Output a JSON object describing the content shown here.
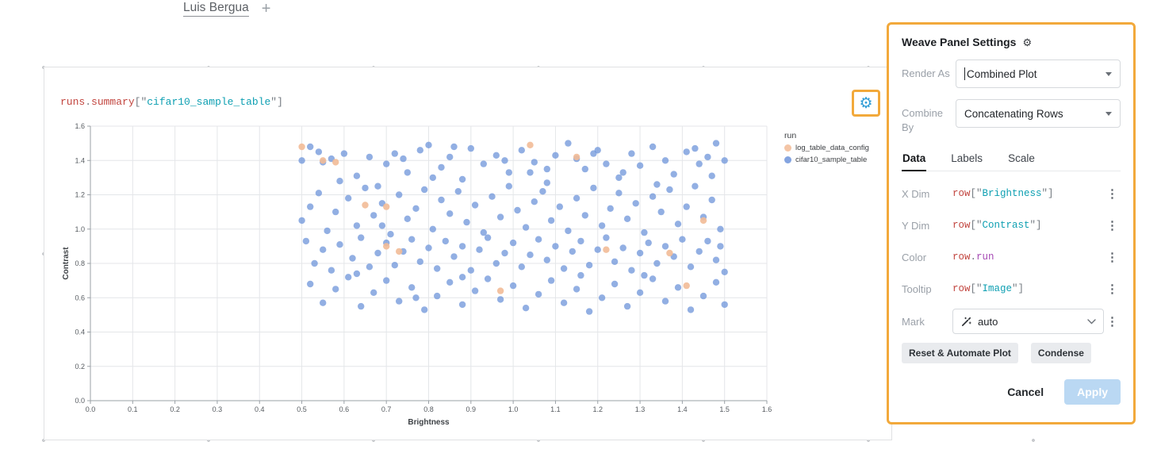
{
  "colors": {
    "highlight": "#f2a93b",
    "gear_blue": "#2f9cd6",
    "apply_bg": "#bad8f3",
    "apply_text": "#ffffff"
  },
  "code_colors": {
    "red": "#c2453f",
    "teal": "#0d9fb2",
    "purple": "#a74bb5",
    "gray": "#767c83"
  },
  "breadcrumb": {
    "name": "Luis Bergua",
    "add": "+"
  },
  "panel": {
    "expression": [
      {
        "t": "runs",
        "c": "red"
      },
      {
        "t": ".",
        "c": "gray"
      },
      {
        "t": "summary",
        "c": "red"
      },
      {
        "t": "[\"",
        "c": "gray"
      },
      {
        "t": "cifar10_sample_table",
        "c": "teal"
      },
      {
        "t": "\"]",
        "c": "gray"
      }
    ]
  },
  "settings": {
    "title": "Weave Panel Settings",
    "render_as_label": "Render As",
    "render_as_value": "Combined Plot",
    "combine_by_label": "Combine By",
    "combine_by_value": "Concatenating Rows",
    "tabs": [
      "Data",
      "Labels",
      "Scale"
    ],
    "active_tab": "Data",
    "rows": {
      "x_dim": {
        "label": "X Dim",
        "value": [
          {
            "t": "row",
            "c": "red"
          },
          {
            "t": "[\"",
            "c": "gray"
          },
          {
            "t": "Brightness",
            "c": "teal"
          },
          {
            "t": "\"]",
            "c": "gray"
          }
        ]
      },
      "y_dim": {
        "label": "Y Dim",
        "value": [
          {
            "t": "row",
            "c": "red"
          },
          {
            "t": "[\"",
            "c": "gray"
          },
          {
            "t": "Contrast",
            "c": "teal"
          },
          {
            "t": "\"]",
            "c": "gray"
          }
        ]
      },
      "color": {
        "label": "Color",
        "value": [
          {
            "t": "row",
            "c": "red"
          },
          {
            "t": ".",
            "c": "gray"
          },
          {
            "t": "run",
            "c": "purple"
          }
        ]
      },
      "tooltip": {
        "label": "Tooltip",
        "value": [
          {
            "t": "row",
            "c": "red"
          },
          {
            "t": "[\"",
            "c": "gray"
          },
          {
            "t": "Image",
            "c": "teal"
          },
          {
            "t": "\"]",
            "c": "gray"
          }
        ]
      }
    },
    "mark": {
      "label": "Mark",
      "value": "auto"
    },
    "reset_button": "Reset & Automate Plot",
    "condense_button": "Condense",
    "cancel_button": "Cancel",
    "apply_button": "Apply"
  },
  "chart_data": {
    "type": "scatter",
    "xlabel": "Brightness",
    "ylabel": "Contrast",
    "xlim": [
      0,
      1.6
    ],
    "ylim": [
      0,
      1.6
    ],
    "x_ticks": [
      0.0,
      0.1,
      0.2,
      0.3,
      0.4,
      0.5,
      0.6,
      0.7,
      0.8,
      0.9,
      1.0,
      1.1,
      1.2,
      1.3,
      1.4,
      1.5,
      1.6
    ],
    "y_ticks": [
      0.0,
      0.2,
      0.4,
      0.6,
      0.8,
      1.0,
      1.2,
      1.4,
      1.6
    ],
    "legend": {
      "title": "run",
      "entries": [
        {
          "label": "log_table_data_config",
          "color": "#f2bb97"
        },
        {
          "label": "cifar10_sample_table",
          "color": "#6e94da"
        }
      ]
    },
    "series": [
      {
        "name": "cifar10_sample_table",
        "color": "#6e94da",
        "opacity": 0.75,
        "points": [
          [
            0.5,
            1.4
          ],
          [
            0.52,
            1.48
          ],
          [
            0.55,
            1.39
          ],
          [
            0.57,
            1.41
          ],
          [
            0.6,
            1.44
          ],
          [
            0.63,
            1.31
          ],
          [
            0.66,
            1.42
          ],
          [
            0.68,
            1.25
          ],
          [
            0.7,
            1.38
          ],
          [
            0.72,
            1.44
          ],
          [
            0.75,
            1.33
          ],
          [
            0.78,
            1.46
          ],
          [
            0.8,
            1.49
          ],
          [
            0.83,
            1.36
          ],
          [
            0.85,
            1.42
          ],
          [
            0.88,
            1.29
          ],
          [
            0.9,
            1.47
          ],
          [
            0.93,
            1.38
          ],
          [
            0.96,
            1.43
          ],
          [
            0.99,
            1.33
          ],
          [
            1.02,
            1.46
          ],
          [
            1.05,
            1.39
          ],
          [
            1.08,
            1.27
          ],
          [
            1.1,
            1.43
          ],
          [
            1.13,
            1.5
          ],
          [
            1.15,
            1.41
          ],
          [
            1.17,
            1.35
          ],
          [
            1.2,
            1.46
          ],
          [
            1.22,
            1.38
          ],
          [
            1.25,
            1.3
          ],
          [
            1.28,
            1.44
          ],
          [
            1.3,
            1.37
          ],
          [
            1.33,
            1.48
          ],
          [
            1.36,
            1.4
          ],
          [
            1.38,
            1.32
          ],
          [
            1.41,
            1.45
          ],
          [
            1.44,
            1.38
          ],
          [
            1.46,
            1.42
          ],
          [
            1.48,
            1.5
          ],
          [
            1.5,
            1.4
          ],
          [
            0.5,
            1.05
          ],
          [
            0.52,
            1.13
          ],
          [
            0.54,
            1.21
          ],
          [
            0.56,
            0.99
          ],
          [
            0.58,
            1.1
          ],
          [
            0.61,
            1.18
          ],
          [
            0.63,
            1.02
          ],
          [
            0.65,
            1.24
          ],
          [
            0.67,
            1.08
          ],
          [
            0.69,
            1.15
          ],
          [
            0.71,
            0.97
          ],
          [
            0.73,
            1.2
          ],
          [
            0.75,
            1.06
          ],
          [
            0.77,
            1.12
          ],
          [
            0.79,
            1.23
          ],
          [
            0.81,
            1.0
          ],
          [
            0.83,
            1.17
          ],
          [
            0.85,
            1.09
          ],
          [
            0.87,
            1.22
          ],
          [
            0.89,
            1.04
          ],
          [
            0.91,
            1.14
          ],
          [
            0.93,
            0.98
          ],
          [
            0.95,
            1.19
          ],
          [
            0.97,
            1.07
          ],
          [
            0.99,
            1.25
          ],
          [
            1.01,
            1.11
          ],
          [
            1.03,
            1.01
          ],
          [
            1.05,
            1.16
          ],
          [
            1.07,
            1.22
          ],
          [
            1.09,
            1.05
          ],
          [
            1.11,
            1.13
          ],
          [
            1.13,
            0.99
          ],
          [
            1.15,
            1.18
          ],
          [
            1.17,
            1.08
          ],
          [
            1.19,
            1.24
          ],
          [
            1.21,
            1.02
          ],
          [
            1.23,
            1.12
          ],
          [
            1.25,
            1.21
          ],
          [
            1.27,
            1.06
          ],
          [
            1.29,
            1.15
          ],
          [
            1.31,
            0.98
          ],
          [
            1.33,
            1.19
          ],
          [
            1.35,
            1.1
          ],
          [
            1.37,
            1.23
          ],
          [
            1.39,
            1.03
          ],
          [
            1.41,
            1.13
          ],
          [
            1.43,
            1.25
          ],
          [
            1.45,
            1.07
          ],
          [
            1.47,
            1.17
          ],
          [
            1.49,
            1.0
          ],
          [
            0.51,
            0.93
          ],
          [
            0.53,
            0.8
          ],
          [
            0.55,
            0.88
          ],
          [
            0.57,
            0.76
          ],
          [
            0.59,
            0.91
          ],
          [
            0.62,
            0.83
          ],
          [
            0.64,
            0.95
          ],
          [
            0.66,
            0.78
          ],
          [
            0.68,
            0.86
          ],
          [
            0.7,
            0.92
          ],
          [
            0.72,
            0.79
          ],
          [
            0.74,
            0.87
          ],
          [
            0.76,
            0.94
          ],
          [
            0.78,
            0.81
          ],
          [
            0.8,
            0.89
          ],
          [
            0.82,
            0.77
          ],
          [
            0.84,
            0.93
          ],
          [
            0.86,
            0.84
          ],
          [
            0.88,
            0.9
          ],
          [
            0.9,
            0.76
          ],
          [
            0.92,
            0.88
          ],
          [
            0.94,
            0.95
          ],
          [
            0.96,
            0.8
          ],
          [
            0.98,
            0.86
          ],
          [
            1.0,
            0.92
          ],
          [
            1.02,
            0.78
          ],
          [
            1.04,
            0.85
          ],
          [
            1.06,
            0.94
          ],
          [
            1.08,
            0.82
          ],
          [
            1.1,
            0.9
          ],
          [
            1.12,
            0.77
          ],
          [
            1.14,
            0.87
          ],
          [
            1.16,
            0.93
          ],
          [
            1.18,
            0.79
          ],
          [
            1.2,
            0.88
          ],
          [
            1.22,
            0.95
          ],
          [
            1.24,
            0.81
          ],
          [
            1.26,
            0.89
          ],
          [
            1.28,
            0.76
          ],
          [
            1.3,
            0.86
          ],
          [
            1.32,
            0.92
          ],
          [
            1.34,
            0.8
          ],
          [
            1.36,
            0.9
          ],
          [
            1.38,
            0.84
          ],
          [
            1.4,
            0.94
          ],
          [
            1.42,
            0.78
          ],
          [
            1.44,
            0.87
          ],
          [
            1.46,
            0.93
          ],
          [
            1.48,
            0.82
          ],
          [
            1.5,
            0.75
          ],
          [
            0.52,
            0.68
          ],
          [
            0.55,
            0.57
          ],
          [
            0.58,
            0.65
          ],
          [
            0.61,
            0.72
          ],
          [
            0.64,
            0.55
          ],
          [
            0.67,
            0.63
          ],
          [
            0.7,
            0.7
          ],
          [
            0.73,
            0.58
          ],
          [
            0.76,
            0.66
          ],
          [
            0.79,
            0.53
          ],
          [
            0.82,
            0.61
          ],
          [
            0.85,
            0.69
          ],
          [
            0.88,
            0.56
          ],
          [
            0.91,
            0.64
          ],
          [
            0.94,
            0.71
          ],
          [
            0.97,
            0.59
          ],
          [
            1.0,
            0.67
          ],
          [
            1.03,
            0.54
          ],
          [
            1.06,
            0.62
          ],
          [
            1.09,
            0.7
          ],
          [
            1.12,
            0.57
          ],
          [
            1.15,
            0.65
          ],
          [
            1.18,
            0.52
          ],
          [
            1.21,
            0.6
          ],
          [
            1.24,
            0.68
          ],
          [
            1.27,
            0.55
          ],
          [
            1.3,
            0.63
          ],
          [
            1.33,
            0.71
          ],
          [
            1.36,
            0.58
          ],
          [
            1.39,
            0.66
          ],
          [
            1.42,
            0.53
          ],
          [
            1.45,
            0.61
          ],
          [
            1.48,
            0.69
          ],
          [
            1.5,
            0.56
          ],
          [
            0.54,
            1.45
          ],
          [
            0.59,
            1.28
          ],
          [
            0.74,
            1.41
          ],
          [
            0.86,
            1.48
          ],
          [
            1.04,
            1.33
          ],
          [
            1.19,
            1.44
          ],
          [
            1.34,
            1.26
          ],
          [
            1.47,
            1.31
          ],
          [
            0.63,
            0.74
          ],
          [
            0.81,
            1.3
          ],
          [
            0.98,
            1.4
          ],
          [
            1.26,
            1.33
          ],
          [
            1.43,
            1.47
          ],
          [
            0.69,
            1.02
          ],
          [
            0.88,
            0.72
          ],
          [
            1.08,
            1.35
          ],
          [
            1.31,
            0.73
          ],
          [
            1.49,
            0.9
          ],
          [
            0.77,
            0.6
          ],
          [
            1.16,
            0.73
          ]
        ]
      },
      {
        "name": "log_table_data_config",
        "color": "#f2bb97",
        "opacity": 0.9,
        "points": [
          [
            0.5,
            1.48
          ],
          [
            0.55,
            1.4
          ],
          [
            0.58,
            1.39
          ],
          [
            0.65,
            1.14
          ],
          [
            0.7,
            1.13
          ],
          [
            0.7,
            0.9
          ],
          [
            0.73,
            0.87
          ],
          [
            1.04,
            1.49
          ],
          [
            1.15,
            1.42
          ],
          [
            1.22,
            0.88
          ],
          [
            1.37,
            0.86
          ],
          [
            1.41,
            0.67
          ],
          [
            1.45,
            1.05
          ],
          [
            0.97,
            0.64
          ]
        ]
      }
    ]
  }
}
